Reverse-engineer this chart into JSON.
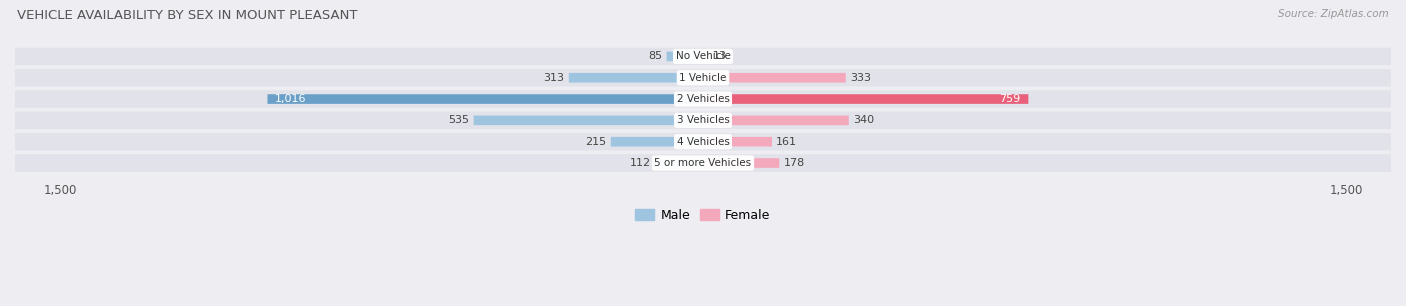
{
  "title": "VEHICLE AVAILABILITY BY SEX IN MOUNT PLEASANT",
  "source": "Source: ZipAtlas.com",
  "categories": [
    "No Vehicle",
    "1 Vehicle",
    "2 Vehicles",
    "3 Vehicles",
    "4 Vehicles",
    "5 or more Vehicles"
  ],
  "male_values": [
    85,
    313,
    1016,
    535,
    215,
    112
  ],
  "female_values": [
    13,
    333,
    759,
    340,
    161,
    178
  ],
  "male_color": "#9ec4e0",
  "female_color": "#f4a8bc",
  "male_color_dark": "#6a9fc8",
  "female_color_dark": "#e8607a",
  "axis_max": 1500,
  "bg_color": "#ededf2",
  "row_bg_color": "#e2e2ea",
  "title_color": "#555555",
  "source_color": "#999999",
  "label_color": "#444444",
  "white_label_threshold_male": 800,
  "white_label_threshold_female": 600,
  "legend_male": "Male",
  "legend_female": "Female"
}
